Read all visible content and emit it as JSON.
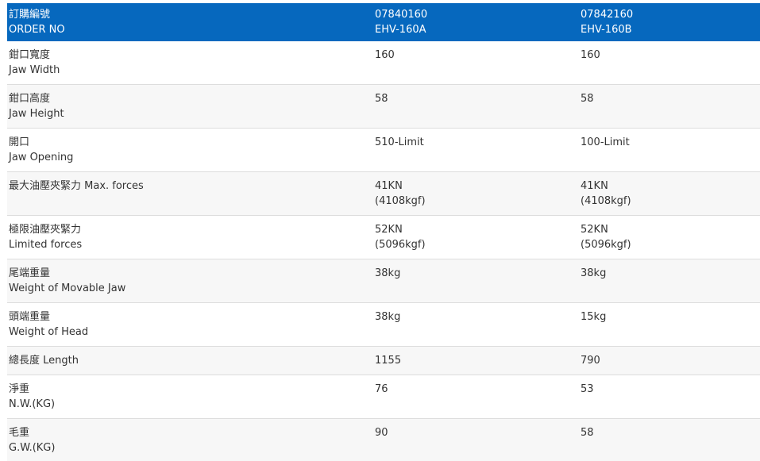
{
  "colors": {
    "header_bg": "#0668be",
    "header_text": "#ffffff",
    "body_text": "#333333",
    "row_alt_bg": "#f7f7f7",
    "separator": "#dddddd"
  },
  "table": {
    "header": {
      "zh": "訂購編號",
      "en": "ORDER NO",
      "product_a": {
        "order_no": "07840160",
        "model": "EHV-160A"
      },
      "product_b": {
        "order_no": "07842160",
        "model": "EHV-160B"
      }
    },
    "rows": [
      {
        "zh": "鉗口寬度",
        "en": "Jaw Width",
        "a": "160",
        "b": "160"
      },
      {
        "zh": "鉗口高度",
        "en": "Jaw Height",
        "a": "58",
        "b": "58"
      },
      {
        "zh": "開口",
        "en": "Jaw Opening",
        "a": "510-Limit",
        "b": "100-Limit"
      },
      {
        "zh": "最大油壓夾緊力 Max. forces",
        "a": "41KN",
        "a2": "(4108kgf)",
        "b": "41KN",
        "b2": "(4108kgf)"
      },
      {
        "zh": "極限油壓夾緊力",
        "en": "Limited forces",
        "a": "52KN",
        "a2": "(5096kgf)",
        "b": "52KN",
        "b2": "(5096kgf)"
      },
      {
        "zh": "尾端重量",
        "en": "Weight of Movable Jaw",
        "a": "38kg",
        "b": "38kg"
      },
      {
        "zh": "頭端重量",
        "en": "Weight of Head",
        "a": "38kg",
        "b": "15kg"
      },
      {
        "zh": "總長度 Length",
        "a": "1155",
        "b": "790"
      },
      {
        "zh": "淨重",
        "en": "N.W.(KG)",
        "a": "76",
        "b": "53"
      },
      {
        "zh": "毛重",
        "en": "G.W.(KG)",
        "a": "90",
        "b": "58"
      }
    ]
  }
}
